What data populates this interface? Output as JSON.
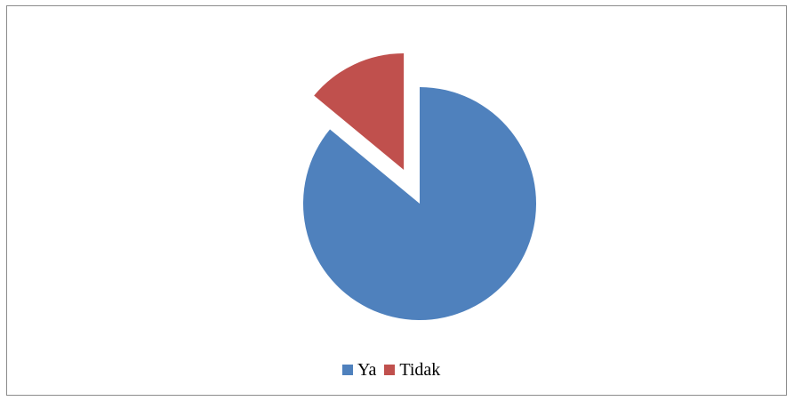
{
  "chart_data": {
    "type": "pie",
    "title": "",
    "categories": [
      "Ya",
      "Tidak"
    ],
    "values": [
      86,
      14
    ],
    "colors": [
      "#4f81bd",
      "#c0504d"
    ],
    "exploded": [
      false,
      true
    ],
    "legend_position": "bottom"
  }
}
